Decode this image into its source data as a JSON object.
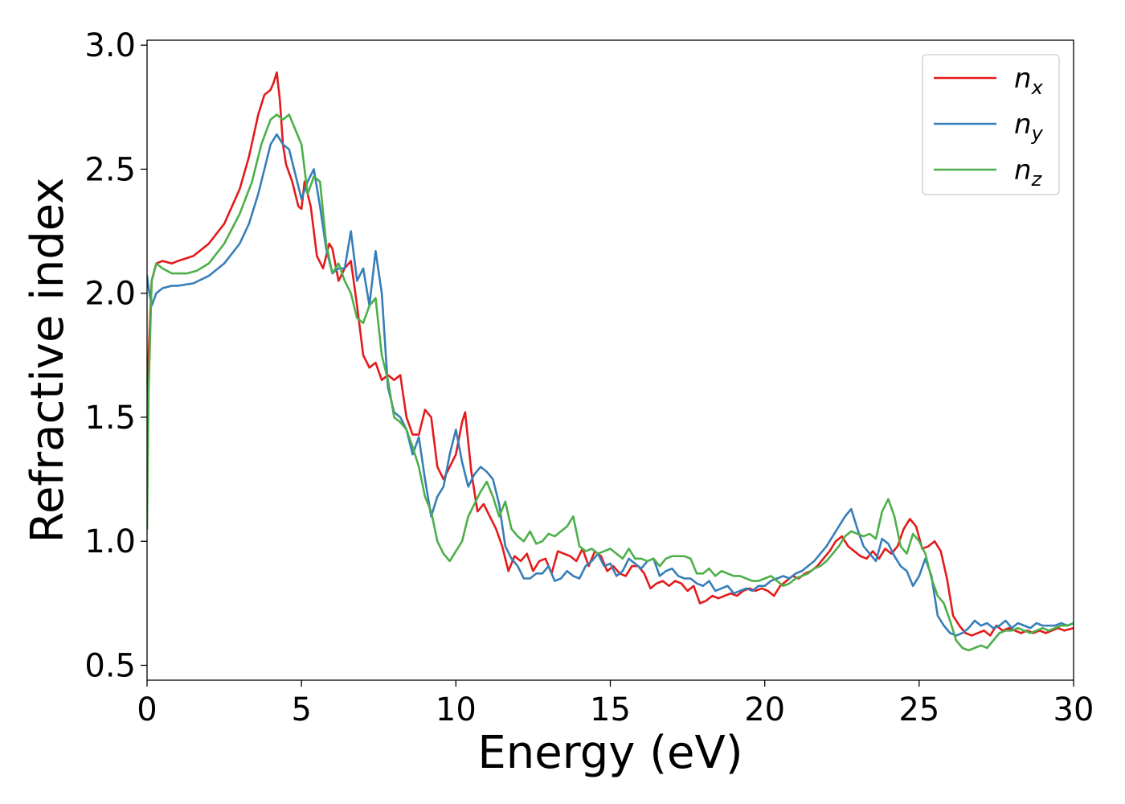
{
  "chart_data": {
    "type": "line",
    "title": "",
    "xlabel": "Energy (eV)",
    "ylabel": "Refractive index",
    "xlim": [
      0,
      30
    ],
    "ylim": [
      0.44,
      3.02
    ],
    "xticks": [
      0,
      5,
      10,
      15,
      20,
      25,
      30
    ],
    "yticks": [
      0.5,
      1.0,
      1.5,
      2.0,
      2.5,
      3.0
    ],
    "xtick_labels": [
      "0",
      "5",
      "10",
      "15",
      "20",
      "25",
      "30"
    ],
    "ytick_labels": [
      "0.5",
      "1.0",
      "1.5",
      "2.0",
      "2.5",
      "3.0"
    ],
    "grid": false,
    "legend_position": "top-right",
    "series": [
      {
        "name": "n",
        "subscript": "x",
        "color": "#e41a1c",
        "x": [
          0,
          0.05,
          0.15,
          0.3,
          0.5,
          0.8,
          1.0,
          1.5,
          2.0,
          2.5,
          3.0,
          3.3,
          3.6,
          3.8,
          4.0,
          4.1,
          4.2,
          4.3,
          4.4,
          4.5,
          4.7,
          4.9,
          5.0,
          5.1,
          5.3,
          5.5,
          5.7,
          5.9,
          6.0,
          6.2,
          6.4,
          6.6,
          6.8,
          7.0,
          7.2,
          7.4,
          7.6,
          7.8,
          8.0,
          8.2,
          8.4,
          8.6,
          8.8,
          9.0,
          9.2,
          9.4,
          9.6,
          9.8,
          10.0,
          10.2,
          10.3,
          10.5,
          10.7,
          10.9,
          11.1,
          11.3,
          11.5,
          11.7,
          11.9,
          12.1,
          12.3,
          12.5,
          12.7,
          12.9,
          13.1,
          13.3,
          13.5,
          13.7,
          13.9,
          14.1,
          14.3,
          14.5,
          14.7,
          14.9,
          15.1,
          15.3,
          15.5,
          15.7,
          15.9,
          16.1,
          16.3,
          16.5,
          16.7,
          16.9,
          17.1,
          17.3,
          17.5,
          17.7,
          17.9,
          18.1,
          18.3,
          18.5,
          18.7,
          18.9,
          19.1,
          19.3,
          19.5,
          19.7,
          19.9,
          20.1,
          20.3,
          20.5,
          20.7,
          20.9,
          21.1,
          21.3,
          21.5,
          21.7,
          21.9,
          22.1,
          22.3,
          22.5,
          22.7,
          22.9,
          23.1,
          23.3,
          23.5,
          23.7,
          23.9,
          24.1,
          24.3,
          24.5,
          24.7,
          24.9,
          25.1,
          25.3,
          25.5,
          25.7,
          25.9,
          26.1,
          26.3,
          26.5,
          26.7,
          26.9,
          27.1,
          27.3,
          27.5,
          27.7,
          27.9,
          28.1,
          28.3,
          28.5,
          28.7,
          28.9,
          29.1,
          29.3,
          29.5,
          29.7,
          30.0
        ],
        "y": [
          1.15,
          1.75,
          2.05,
          2.12,
          2.13,
          2.12,
          2.13,
          2.15,
          2.2,
          2.28,
          2.42,
          2.55,
          2.72,
          2.8,
          2.82,
          2.85,
          2.89,
          2.78,
          2.6,
          2.52,
          2.45,
          2.35,
          2.34,
          2.45,
          2.35,
          2.15,
          2.1,
          2.2,
          2.18,
          2.05,
          2.1,
          2.13,
          1.95,
          1.75,
          1.7,
          1.72,
          1.65,
          1.67,
          1.65,
          1.67,
          1.5,
          1.43,
          1.43,
          1.53,
          1.5,
          1.3,
          1.25,
          1.3,
          1.35,
          1.48,
          1.52,
          1.28,
          1.12,
          1.15,
          1.1,
          1.05,
          0.98,
          0.88,
          0.94,
          0.92,
          0.95,
          0.88,
          0.92,
          0.93,
          0.87,
          0.96,
          0.95,
          0.94,
          0.92,
          0.97,
          0.9,
          0.96,
          0.94,
          0.88,
          0.9,
          0.87,
          0.86,
          0.9,
          0.9,
          0.87,
          0.81,
          0.83,
          0.84,
          0.82,
          0.84,
          0.83,
          0.8,
          0.82,
          0.75,
          0.76,
          0.78,
          0.77,
          0.78,
          0.79,
          0.78,
          0.8,
          0.81,
          0.8,
          0.81,
          0.8,
          0.78,
          0.82,
          0.84,
          0.86,
          0.85,
          0.87,
          0.88,
          0.9,
          0.93,
          0.96,
          1.0,
          1.02,
          0.98,
          0.96,
          0.94,
          0.93,
          0.96,
          0.93,
          0.97,
          0.95,
          0.98,
          1.05,
          1.09,
          1.06,
          0.97,
          0.98,
          1.0,
          0.96,
          0.85,
          0.7,
          0.66,
          0.63,
          0.62,
          0.63,
          0.64,
          0.62,
          0.66,
          0.64,
          0.65,
          0.64,
          0.63,
          0.64,
          0.63,
          0.64,
          0.63,
          0.64,
          0.65,
          0.64,
          0.65
        ],
        "ignore": null
      },
      {
        "name": "n",
        "subscript": "y",
        "color": "#377eb8",
        "x": [
          0,
          0.05,
          0.15,
          0.3,
          0.5,
          0.8,
          1.0,
          1.5,
          2.0,
          2.5,
          3.0,
          3.3,
          3.6,
          3.8,
          4.0,
          4.2,
          4.4,
          4.6,
          4.8,
          5.0,
          5.2,
          5.4,
          5.6,
          5.8,
          6.0,
          6.2,
          6.4,
          6.6,
          6.8,
          7.0,
          7.2,
          7.4,
          7.6,
          7.8,
          8.0,
          8.2,
          8.4,
          8.6,
          8.8,
          9.0,
          9.2,
          9.4,
          9.6,
          9.8,
          10.0,
          10.2,
          10.4,
          10.6,
          10.8,
          11.0,
          11.2,
          11.4,
          11.6,
          11.8,
          12.0,
          12.2,
          12.4,
          12.6,
          12.8,
          13.0,
          13.2,
          13.4,
          13.6,
          13.8,
          14.0,
          14.2,
          14.4,
          14.6,
          14.8,
          15.0,
          15.2,
          15.4,
          15.6,
          15.8,
          16.0,
          16.2,
          16.4,
          16.6,
          16.8,
          17.0,
          17.2,
          17.4,
          17.6,
          17.8,
          18.0,
          18.2,
          18.4,
          18.6,
          18.8,
          19.0,
          19.2,
          19.4,
          19.6,
          19.8,
          20.0,
          20.2,
          20.4,
          20.6,
          20.8,
          21.0,
          21.2,
          21.4,
          21.6,
          21.8,
          22.0,
          22.2,
          22.4,
          22.6,
          22.8,
          23.0,
          23.2,
          23.4,
          23.6,
          23.8,
          24.0,
          24.2,
          24.4,
          24.6,
          24.8,
          25.0,
          25.2,
          25.4,
          25.6,
          25.8,
          26.0,
          26.2,
          26.4,
          26.6,
          26.8,
          27.0,
          27.2,
          27.4,
          27.6,
          27.8,
          28.0,
          28.2,
          28.4,
          28.6,
          28.8,
          29.0,
          29.2,
          29.4,
          29.6,
          29.8,
          30.0
        ],
        "y": [
          2.07,
          2.02,
          1.95,
          2.0,
          2.02,
          2.03,
          2.03,
          2.04,
          2.07,
          2.12,
          2.2,
          2.28,
          2.4,
          2.5,
          2.6,
          2.64,
          2.6,
          2.58,
          2.48,
          2.38,
          2.45,
          2.5,
          2.35,
          2.18,
          2.08,
          2.1,
          2.1,
          2.25,
          2.05,
          2.1,
          1.95,
          2.17,
          2.0,
          1.62,
          1.52,
          1.5,
          1.45,
          1.35,
          1.42,
          1.25,
          1.1,
          1.18,
          1.22,
          1.35,
          1.45,
          1.32,
          1.22,
          1.27,
          1.3,
          1.28,
          1.25,
          1.15,
          0.98,
          0.93,
          0.9,
          0.85,
          0.85,
          0.87,
          0.87,
          0.9,
          0.84,
          0.85,
          0.88,
          0.86,
          0.85,
          0.9,
          0.92,
          0.95,
          0.9,
          0.91,
          0.86,
          0.88,
          0.93,
          0.91,
          0.89,
          0.92,
          0.93,
          0.86,
          0.88,
          0.89,
          0.86,
          0.85,
          0.85,
          0.83,
          0.82,
          0.84,
          0.8,
          0.81,
          0.82,
          0.79,
          0.8,
          0.81,
          0.8,
          0.82,
          0.82,
          0.84,
          0.85,
          0.86,
          0.85,
          0.87,
          0.88,
          0.9,
          0.92,
          0.95,
          0.98,
          1.02,
          1.06,
          1.1,
          1.13,
          1.05,
          0.98,
          0.95,
          0.92,
          1.01,
          0.99,
          0.94,
          0.9,
          0.88,
          0.82,
          0.86,
          0.93,
          0.86,
          0.7,
          0.66,
          0.63,
          0.62,
          0.63,
          0.65,
          0.68,
          0.66,
          0.67,
          0.65,
          0.66,
          0.68,
          0.65,
          0.67,
          0.66,
          0.65,
          0.67,
          0.66,
          0.66,
          0.66,
          0.67,
          0.66,
          0.67
        ],
        "ignore": null
      },
      {
        "name": "n",
        "subscript": "z",
        "color": "#4daf4a",
        "x": [
          0,
          0.05,
          0.15,
          0.3,
          0.5,
          0.8,
          1.0,
          1.3,
          1.6,
          2.0,
          2.5,
          3.0,
          3.4,
          3.7,
          4.0,
          4.2,
          4.4,
          4.6,
          4.8,
          5.0,
          5.2,
          5.4,
          5.6,
          5.8,
          6.0,
          6.2,
          6.4,
          6.6,
          6.8,
          7.0,
          7.2,
          7.4,
          7.6,
          7.8,
          8.0,
          8.2,
          8.4,
          8.6,
          8.8,
          9.0,
          9.2,
          9.4,
          9.6,
          9.8,
          10.0,
          10.2,
          10.4,
          10.6,
          10.8,
          11.0,
          11.2,
          11.4,
          11.6,
          11.8,
          12.0,
          12.2,
          12.4,
          12.6,
          12.8,
          13.0,
          13.2,
          13.4,
          13.6,
          13.8,
          14.0,
          14.2,
          14.4,
          14.6,
          14.8,
          15.0,
          15.2,
          15.4,
          15.6,
          15.8,
          16.0,
          16.2,
          16.4,
          16.6,
          16.8,
          17.0,
          17.2,
          17.4,
          17.6,
          17.8,
          18.0,
          18.2,
          18.4,
          18.6,
          18.8,
          19.0,
          19.2,
          19.4,
          19.6,
          19.8,
          20.0,
          20.2,
          20.4,
          20.6,
          20.8,
          21.0,
          21.2,
          21.4,
          21.6,
          21.8,
          22.0,
          22.2,
          22.4,
          22.6,
          22.8,
          23.0,
          23.2,
          23.4,
          23.6,
          23.8,
          24.0,
          24.2,
          24.4,
          24.6,
          24.8,
          25.0,
          25.2,
          25.4,
          25.6,
          25.8,
          26.0,
          26.2,
          26.4,
          26.6,
          26.8,
          27.0,
          27.2,
          27.4,
          27.6,
          27.8,
          28.0,
          28.2,
          28.4,
          28.6,
          28.8,
          29.0,
          29.2,
          29.4,
          29.6,
          29.8,
          30.0
        ],
        "y": [
          1.05,
          1.6,
          2.05,
          2.12,
          2.1,
          2.08,
          2.08,
          2.08,
          2.09,
          2.12,
          2.2,
          2.32,
          2.45,
          2.6,
          2.7,
          2.72,
          2.7,
          2.72,
          2.66,
          2.6,
          2.4,
          2.47,
          2.45,
          2.2,
          2.08,
          2.12,
          2.05,
          2.0,
          1.9,
          1.88,
          1.95,
          1.98,
          1.75,
          1.65,
          1.5,
          1.48,
          1.45,
          1.38,
          1.3,
          1.18,
          1.12,
          1.0,
          0.95,
          0.92,
          0.96,
          1.0,
          1.1,
          1.15,
          1.2,
          1.24,
          1.18,
          1.1,
          1.16,
          1.05,
          1.02,
          1.0,
          1.04,
          0.99,
          1.0,
          1.03,
          1.02,
          1.04,
          1.06,
          1.1,
          0.98,
          0.96,
          0.97,
          0.95,
          0.96,
          0.97,
          0.95,
          0.93,
          0.97,
          0.93,
          0.93,
          0.92,
          0.93,
          0.9,
          0.93,
          0.94,
          0.94,
          0.94,
          0.93,
          0.87,
          0.87,
          0.89,
          0.86,
          0.88,
          0.87,
          0.86,
          0.86,
          0.85,
          0.84,
          0.84,
          0.85,
          0.86,
          0.84,
          0.82,
          0.83,
          0.85,
          0.86,
          0.87,
          0.89,
          0.9,
          0.92,
          0.95,
          0.98,
          1.02,
          1.04,
          1.03,
          1.02,
          1.03,
          1.01,
          1.12,
          1.17,
          1.1,
          0.98,
          0.95,
          1.03,
          1.0,
          0.95,
          0.85,
          0.78,
          0.75,
          0.68,
          0.6,
          0.57,
          0.56,
          0.57,
          0.58,
          0.57,
          0.6,
          0.63,
          0.64,
          0.64,
          0.65,
          0.64,
          0.63,
          0.64,
          0.65,
          0.64,
          0.65,
          0.66,
          0.66,
          0.67
        ],
        "ignore": null
      }
    ]
  }
}
